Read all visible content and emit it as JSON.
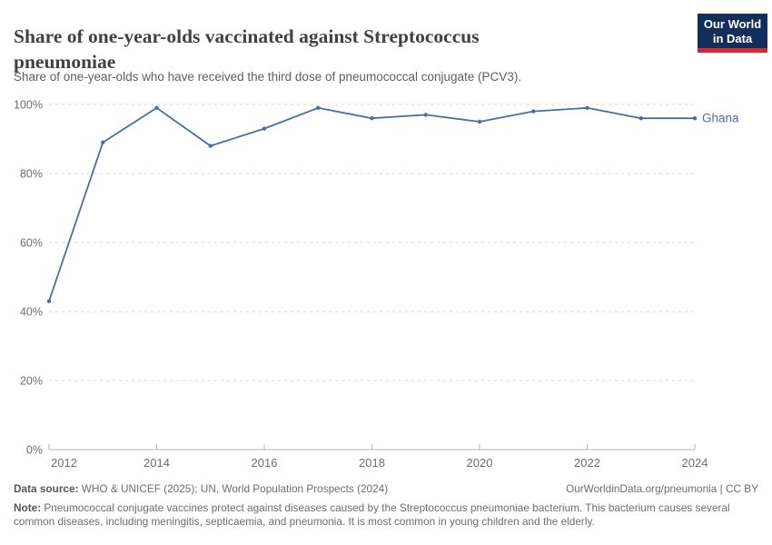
{
  "header": {
    "logo": {
      "line1": "Our World",
      "line2": "in Data",
      "bg_color": "#142e5c",
      "accent_color": "#d7282f"
    }
  },
  "chart_data": {
    "type": "line",
    "title": "Share of one-year-olds vaccinated against Streptococcus pneumoniae",
    "subtitle": "Share of one-year-olds who have received the third dose of pneumococcal conjugate (PCV3).",
    "x": [
      2012,
      2013,
      2014,
      2015,
      2016,
      2017,
      2018,
      2019,
      2020,
      2021,
      2022,
      2023,
      2024
    ],
    "series": [
      {
        "name": "Ghana",
        "color": "#4C6CA4",
        "values": [
          43,
          89,
          99,
          88,
          93,
          99,
          96,
          97,
          95,
          98,
          99,
          96,
          96
        ]
      }
    ],
    "xlabel": "",
    "ylabel": "",
    "ylim": [
      0,
      100
    ],
    "y_ticks": [
      0,
      20,
      40,
      60,
      80,
      100
    ],
    "y_tick_suffix": "%",
    "x_ticks": [
      2012,
      2014,
      2016,
      2018,
      2020,
      2022,
      2024
    ],
    "grid": "horizontal-dashed",
    "legend_position": "end-of-line-label",
    "grid_color": "#d9d9d9",
    "axis_color": "#b3b3b3",
    "tick_label_color": "#6e6e6e"
  },
  "footer": {
    "datasource_label": "Data source:",
    "datasource_text": " WHO & UNICEF (2025); UN, World Population Prospects (2024)",
    "attribution": "OurWorldinData.org/pneumonia | CC BY",
    "note_label": "Note:",
    "note_text": " Pneumococcal conjugate vaccines protect against diseases caused by the Streptococcus pneumoniae bacterium. This bacterium causes several common diseases, including meningitis, septicaemia, and pneumonia. It is most common in young children and the elderly."
  }
}
